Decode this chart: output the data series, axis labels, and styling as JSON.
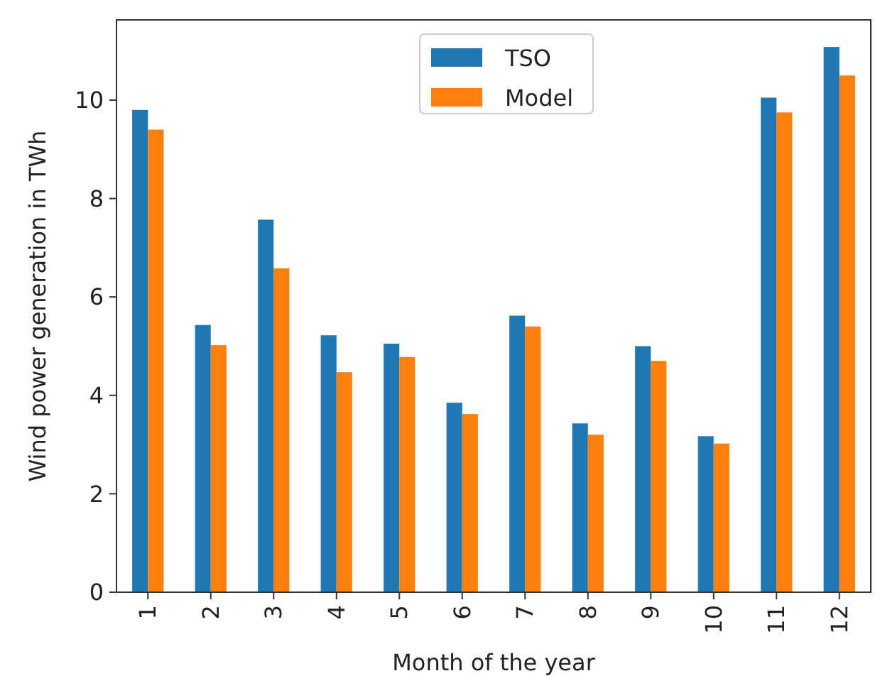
{
  "chart_data": {
    "type": "bar",
    "xlabel": "Month of the year",
    "ylabel": "Wind power generation in TWh",
    "categories": [
      "1",
      "2",
      "3",
      "4",
      "5",
      "6",
      "7",
      "8",
      "9",
      "10",
      "11",
      "12"
    ],
    "series": [
      {
        "name": "TSO",
        "color": "#1f77b4",
        "values": [
          9.8,
          5.43,
          7.57,
          5.22,
          5.05,
          3.85,
          5.62,
          3.43,
          5.0,
          3.17,
          10.05,
          11.08
        ]
      },
      {
        "name": "Model",
        "color": "#ff7f0e",
        "values": [
          9.4,
          5.02,
          6.58,
          4.47,
          4.78,
          3.62,
          5.4,
          3.2,
          4.7,
          3.02,
          9.75,
          10.5
        ]
      }
    ],
    "ylim": [
      0,
      11.63
    ],
    "yticks": [
      0,
      2,
      4,
      6,
      8,
      10
    ],
    "legend": "top",
    "grid": false
  }
}
